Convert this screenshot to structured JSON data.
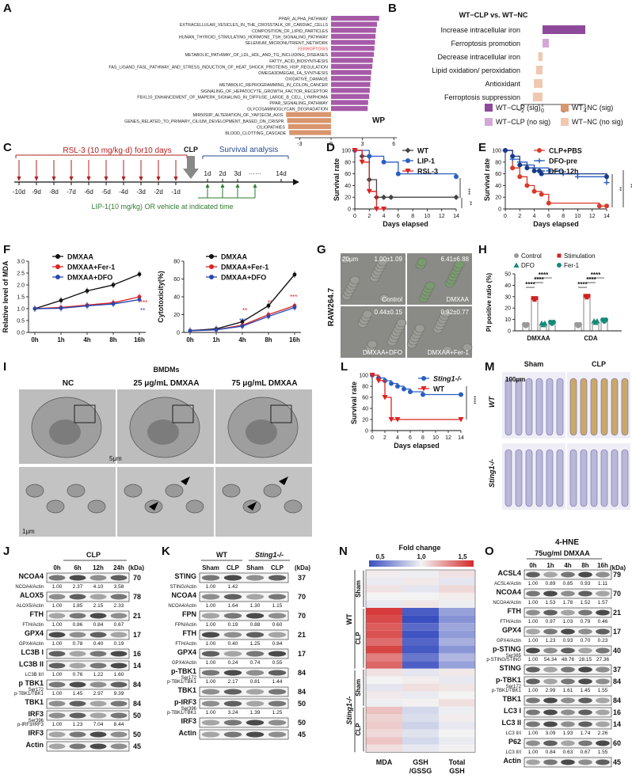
{
  "panel_letters": [
    "A",
    "B",
    "C",
    "D",
    "E",
    "F",
    "G",
    "H",
    "I",
    "J",
    "K",
    "L",
    "M",
    "N",
    "O"
  ],
  "panelA": {
    "pathways": [
      "PPAR_ALPHA_PATHWAY",
      "EXTRACELLULAR_VESICLES_IN_THE_CROSSTALK_OF_CARDIAC_CELLS",
      "COMPOSITION_OF_LIPID_PARTICLES",
      "HUMAN_THYROID_STIMULATING_HORMONE_TSH_SIGNALING_PATHWAY",
      "SELENIUM_MICRONUTRIENT_NETWORK",
      "FERROPTOSIS",
      "METABOLIC_PATHWAY_OF_LDL_HDL_AND_TG_INCLUDING_DISEASES",
      "FATTY_ACID_BIOSYNTHESIS",
      "FAS_LIGAND_FASL_PATHWAY_AND_STRESS_INDUCTION_OF_HEAT_SHOCK_PROTEINS_HSP_REGULATION",
      "OMEGA3OMEGA6_FA_SYNTHESIS",
      "OXIDATIVE_DAMAGE",
      "METABOLIC_REPROGRAMMING_IN_COLON_CANCER",
      "SIGNALING_OF_HEPATOCYTE_GROWTH_FACTOR_RECEPTOR",
      "FBXL10_ENHANCEMENT_OF_MAPERK_SIGNALING_IN_DIFFUSE_LARGE_B_CELL_LYMPHOMA",
      "PPAR_SIGNALING_PATHWAY",
      "GLYCOSAMINOGLYCAN_DEGRADATION",
      "MIR5093P_ALTERATION_OF_YAP1ECM_AXIS",
      "GENES_RELATED_TO_PRIMARY_CILIUM_DEVELOPMENT_BASED_ON_CRISPR",
      "CILIOPATHIES",
      "BLOOD_CLOTTING_CASCADE"
    ],
    "values": [
      4.6,
      4.4,
      4.3,
      4.25,
      4.2,
      4.15,
      4.1,
      4.0,
      3.95,
      3.85,
      3.8,
      3.75,
      3.7,
      3.65,
      3.55,
      3.5,
      -4.3,
      -4.2,
      -4.1,
      -4.0
    ],
    "ticks": [
      "-3",
      "0",
      "3",
      "6"
    ],
    "tag": "WP",
    "colors": {
      "pos": "#a65aa8",
      "neg": "#d9956d",
      "highlight": "#e03a3a"
    }
  },
  "panelB": {
    "title": "WT−CLP vs. WT−NC",
    "categories": [
      "Increase intracellular iron",
      "Ferroptosis promotion",
      "Decrease intracellular iron",
      "Lipid oxidation/ peroxidation",
      "Antioxidant",
      "Ferroptosis suppression"
    ],
    "values": [
      4.0,
      0.6,
      -0.4,
      -0.6,
      -0.8,
      -0.9
    ],
    "fills": [
      "#8e4a9a",
      "#d3a8d8",
      "#f0c8b0",
      "#f0c8b0",
      "#f0c8b0",
      "#f0c8b0"
    ],
    "ticks": [
      "−2",
      "0",
      "2",
      "4"
    ],
    "legend": [
      "WT−CLP (sig)",
      "WT−NC (sig)",
      "WT−CLP (no sig)",
      "WT−NC (no sig)"
    ],
    "legend_colors": [
      "#8e4a9a",
      "#d9956d",
      "#d3a8d8",
      "#f0c8b0"
    ]
  },
  "panelC": {
    "rsl": "RSL-3 (10 mg/kg·d) for10 days",
    "clp": "CLP",
    "survival": "Survival analysis",
    "days_pre": [
      "-10d",
      "-9d",
      "-8d",
      "-7d",
      "-6d",
      "-5d",
      "-4d",
      "-3d",
      "-2d",
      "-1d"
    ],
    "days_post": [
      "1d",
      "2d",
      "3d",
      "······",
      "14d"
    ],
    "lip": "LIP-1(10 mg/kg) OR vehicle at indicated time"
  },
  "panelD": {
    "ylabel": "Survival rate",
    "xlabel": "Days elapsed",
    "yticks": [
      "0",
      "20",
      "40",
      "60",
      "80",
      "100"
    ],
    "xticks": [
      "0",
      "2",
      "4",
      "6",
      "8",
      "10",
      "12",
      "14"
    ],
    "legend": [
      "WT",
      "LIP-1",
      "RSL-3"
    ],
    "sig": [
      "***",
      "**"
    ]
  },
  "panelE": {
    "ylabel": "Survival rate",
    "xlabel": "Days elapsed",
    "yticks": [
      "0",
      "20",
      "40",
      "60",
      "80",
      "100"
    ],
    "xticks": [
      "0",
      "2",
      "4",
      "6",
      "8",
      "10",
      "12",
      "14"
    ],
    "legend": [
      "CLP+PBS",
      "DFO-pre",
      "DFO-12h"
    ],
    "sig": [
      "**",
      "**"
    ]
  },
  "panelF": {
    "left_ylabel": "Relative level of MDA",
    "right_ylabel": "Cytotoxicity(%)",
    "xticks": [
      "0h",
      "1h",
      "4h",
      "8h",
      "16h"
    ],
    "left_yticks": [
      "0.0",
      "0.5",
      "1.0",
      "1.5",
      "2.0",
      "2.5",
      "3.0"
    ],
    "right_yticks": [
      "0",
      "20",
      "40",
      "60",
      "80"
    ],
    "legend": [
      "DMXAA",
      "DMXAA+Fer-1",
      "DMXAA+DFO"
    ]
  },
  "panelG": {
    "side": "RAW264.7",
    "scale": "20μm",
    "tiles": [
      {
        "val": "1.00±1.09",
        "label": "Control"
      },
      {
        "val": "6.41±6.88",
        "label": "DMXAA"
      },
      {
        "val": "0.44±0.15",
        "label": "DMXAA+DFO"
      },
      {
        "val": "0.92±0.77",
        "label": "DMXAA+Fer-1"
      }
    ]
  },
  "panelH": {
    "ylabel": "PI positive ratio (%)",
    "yticks": [
      "0",
      "10",
      "20",
      "30",
      "40",
      "50"
    ],
    "groups": [
      "DMXAA",
      "CDA"
    ],
    "legend": [
      "Control",
      "Stimulation",
      "DFO",
      "Fer-1"
    ],
    "sig": "****"
  },
  "panelI": {
    "title": "BMDMs",
    "cols": [
      "NC",
      "25 μg/mL DMXAA",
      "75 μg/mL DMXAA"
    ],
    "scale_top": "5μm",
    "scale_bottom": "1μm"
  },
  "panelJ": {
    "header": "CLP",
    "lanes": [
      "0h",
      "6h",
      "12h",
      "24h"
    ],
    "kda": "(kDa)",
    "rows": [
      {
        "name": "NCOA4",
        "kda": "70",
        "ratio": "NCOA4/Actin",
        "vals": [
          "1.00",
          "2.37",
          "4.10",
          "3.58"
        ]
      },
      {
        "name": "ALOX5",
        "kda": "78",
        "ratio": "ALOX5/Actin",
        "vals": [
          "1.00",
          "1.85",
          "2.15",
          "2.33"
        ]
      },
      {
        "name": "FTH",
        "kda": "21",
        "ratio": "FTH/Actin",
        "vals": [
          "1.00",
          "0.86",
          "0.84",
          "0.67"
        ]
      },
      {
        "name": "GPX4",
        "kda": "17",
        "ratio": "GPX4/Actin",
        "vals": [
          "1.00",
          "0.78",
          "0.40",
          "0.19"
        ]
      },
      {
        "name": "LC3B I",
        "kda": "16",
        "ratio": "",
        "vals": []
      },
      {
        "name": "LC3B II",
        "kda": "14",
        "ratio": "LC3B II/I",
        "vals": [
          "1.00",
          "0.76",
          "1.22",
          "1.60"
        ]
      },
      {
        "name": "p TBK1",
        "sub": "Ser172",
        "kda": "84",
        "ratio": "p-TBK1/TBK1",
        "vals": [
          "1.00",
          "1.45",
          "2.97",
          "9.39"
        ]
      },
      {
        "name": "TBK1",
        "kda": "84",
        "ratio": "",
        "vals": []
      },
      {
        "name": "IRF3",
        "sub": "Ser396",
        "kda": "50",
        "ratio": "p-IRF3/IRF3",
        "vals": [
          "1.00",
          "1.23",
          "7.04",
          "8.44"
        ]
      },
      {
        "name": "IRF3",
        "kda": "50",
        "ratio": "",
        "vals": []
      },
      {
        "name": "Actin",
        "kda": "45",
        "ratio": "",
        "vals": []
      }
    ]
  },
  "panelK": {
    "groups": [
      "WT",
      "Sting1-/-"
    ],
    "lanes": [
      "Sham",
      "CLP",
      "Sham",
      "CLP"
    ],
    "kda": "(kDa)",
    "rows": [
      {
        "name": "STING",
        "kda": "37",
        "ratio": "STING/Actin",
        "vals": [
          "1.00",
          "1.42",
          "",
          ""
        ]
      },
      {
        "name": "NCOA4",
        "kda": "70",
        "ratio": "NCOA4/Actin",
        "vals": [
          "1.00",
          "1.64",
          "1.30",
          "1.15"
        ]
      },
      {
        "name": "FPN",
        "kda": "70",
        "ratio": "FPN/Actin",
        "vals": [
          "1.00",
          "0.19",
          "0.88",
          "0.60"
        ]
      },
      {
        "name": "FTH",
        "kda": "21",
        "ratio": "FTH/Actin",
        "vals": [
          "1.00",
          "0.40",
          "1.25",
          "0.84"
        ]
      },
      {
        "name": "GPX4",
        "kda": "17",
        "ratio": "GPX4/Actin",
        "vals": [
          "1.00",
          "0.24",
          "0.74",
          "0.55"
        ]
      },
      {
        "name": "p-TBK1",
        "sub": "Ser172",
        "kda": "84",
        "ratio": "p-TBK1/TBK1",
        "vals": [
          "1.00",
          "2.17",
          "0.81",
          "1.44"
        ]
      },
      {
        "name": "TBK1",
        "kda": "84",
        "ratio": "",
        "vals": []
      },
      {
        "name": "p-IRF3",
        "sub": "Ser396",
        "kda": "50",
        "ratio": "p-TBK1/TBK1",
        "vals": [
          "1.00",
          "3.24",
          "1.39",
          "1.25"
        ]
      },
      {
        "name": "IRF3",
        "kda": "50",
        "ratio": "",
        "vals": []
      },
      {
        "name": "Actin",
        "kda": "45",
        "ratio": "",
        "vals": []
      }
    ]
  },
  "panelL": {
    "ylabel": "Survival rate",
    "xlabel": "Days elapsed",
    "yticks": [
      "0",
      "20",
      "40",
      "60",
      "80",
      "100"
    ],
    "xticks": [
      "0",
      "2",
      "4",
      "6",
      "8",
      "10",
      "12",
      "14"
    ],
    "legend": [
      "Sting1-/-",
      "WT"
    ],
    "sig": "****"
  },
  "panelM": {
    "cols": [
      "Sham",
      "CLP"
    ],
    "rows": [
      "WT",
      "Sting1-/-"
    ],
    "scale": "100μm",
    "caption": "4-HNE"
  },
  "panelN": {
    "title": "Fold change",
    "scale_ticks": [
      "0,5",
      "1,0",
      "1,5"
    ],
    "cols": [
      "MDA",
      "GSH /GSSG",
      "Total GSH"
    ],
    "outer": [
      "WT",
      "Sting1-/-"
    ],
    "inner": [
      "Sham",
      "CLP",
      "Sham",
      "CLP"
    ],
    "matrix": [
      [
        1.02,
        0.98,
        1.05
      ],
      [
        0.97,
        1.03,
        0.95
      ],
      [
        1.05,
        0.95,
        1.08
      ],
      [
        1.0,
        1.0,
        1.02
      ],
      [
        0.96,
        1.04,
        0.98
      ],
      [
        1.55,
        0.45,
        0.7
      ],
      [
        1.5,
        0.4,
        0.65
      ],
      [
        1.45,
        0.5,
        0.72
      ],
      [
        1.48,
        0.42,
        0.68
      ],
      [
        1.4,
        0.48,
        0.75
      ],
      [
        1.52,
        0.44,
        0.66
      ],
      [
        1.35,
        0.55,
        0.78
      ],
      [
        1.42,
        0.46,
        0.7
      ],
      [
        1.05,
        0.95,
        1.03
      ],
      [
        1.0,
        1.02,
        0.96
      ],
      [
        0.95,
        1.06,
        1.04
      ],
      [
        1.03,
        0.97,
        1.0
      ],
      [
        0.98,
        1.01,
        1.06
      ],
      [
        1.15,
        0.9,
        0.98
      ],
      [
        1.1,
        0.92,
        1.02
      ],
      [
        1.12,
        0.88,
        0.96
      ],
      [
        1.08,
        0.94,
        1.0
      ],
      [
        1.14,
        0.9,
        0.97
      ],
      [
        1.06,
        0.96,
        1.01
      ]
    ]
  },
  "panelO": {
    "header": "75ug/ml DMXAA",
    "lanes": [
      "0h",
      "1h",
      "4h",
      "8h",
      "16h"
    ],
    "kda": "(kDa)",
    "rows": [
      {
        "name": "ACSL4",
        "kda": "79",
        "ratio": "ACSL4/Actin",
        "vals": [
          "1.00",
          "0.89",
          "0.85",
          "0.93",
          "1.11"
        ]
      },
      {
        "name": "NCOA4",
        "kda": "70",
        "ratio": "NCOA4/Actin",
        "vals": [
          "1.00",
          "1.53",
          "1.78",
          "1.52",
          "1.57"
        ]
      },
      {
        "name": "FTH",
        "kda": "21",
        "ratio": "FTH/Actin",
        "vals": [
          "1.00",
          "0.97",
          "1.03",
          "0.79",
          "0.46"
        ]
      },
      {
        "name": "GPX4",
        "kda": "17",
        "ratio": "GPX4/Actin",
        "vals": [
          "1.00",
          "1.23",
          "0.93",
          "0.70",
          "0.23"
        ]
      },
      {
        "name": "p-STING",
        "sub": "Ser365",
        "kda": "40",
        "ratio": "p-STING/STING",
        "vals": [
          "1.00",
          "54.34",
          "48.76",
          "28.15",
          "27.36"
        ]
      },
      {
        "name": "STING",
        "kda": "37",
        "ratio": "",
        "vals": []
      },
      {
        "name": "p-TBK1",
        "sub": "Ser172",
        "kda": "84",
        "ratio": "p-TBK1/TBK1",
        "vals": [
          "1.00",
          "2.99",
          "1.61",
          "1.45",
          "1.55"
        ]
      },
      {
        "name": "TBK1",
        "kda": "84",
        "ratio": "",
        "vals": []
      },
      {
        "name": "LC3 I",
        "kda": "16",
        "ratio": "",
        "vals": []
      },
      {
        "name": "LC3 II",
        "kda": "14",
        "ratio": "LC3 II/I",
        "vals": [
          "1.00",
          "3.09",
          "1.93",
          "1.74",
          "2.26"
        ]
      },
      {
        "name": "P62",
        "kda": "60",
        "ratio": "LC3 II/I",
        "vals": [
          "1.00",
          "0.84",
          "0.63",
          "0.67",
          "1.55"
        ]
      },
      {
        "name": "Actin",
        "kda": "45",
        "ratio": "",
        "vals": []
      }
    ]
  }
}
